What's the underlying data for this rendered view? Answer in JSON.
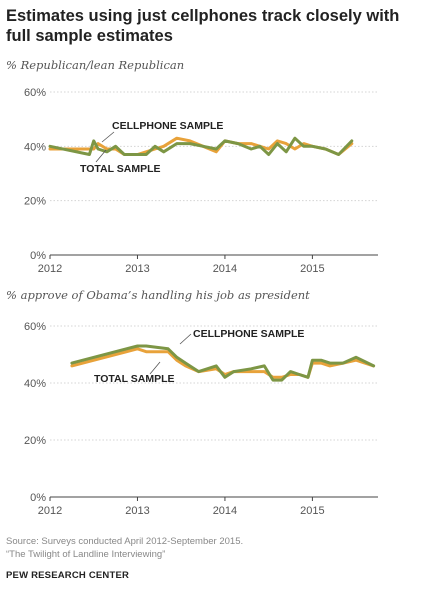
{
  "title": "Estimates using just cellphones track closely with full sample estimates",
  "source": "Source: Surveys conducted April 2012-September 2015.",
  "report": "“The Twilight of Landline Interviewing”",
  "brand": "PEW RESEARCH CENTER",
  "colors": {
    "cellphone": "#E8A23A",
    "total": "#7D9645",
    "grid": "#d4d4d4",
    "axis": "#444444"
  },
  "chart_data": [
    {
      "type": "line",
      "title": "% Republican/lean Republican",
      "x_ticks": [
        "2012",
        "2013",
        "2014",
        "2015"
      ],
      "xlim": [
        2012.0,
        2015.75
      ],
      "y_ticks": [
        "0%",
        "20%",
        "40%",
        "60%"
      ],
      "ylim": [
        0,
        60
      ],
      "annotations": [
        "CELLPHONE SAMPLE",
        "TOTAL SAMPLE"
      ],
      "series": [
        {
          "name": "CELLPHONE SAMPLE",
          "x": [
            2012.0,
            2012.45,
            2012.5,
            2012.55,
            2012.65,
            2012.75,
            2012.85,
            2013.0,
            2013.1,
            2013.2,
            2013.3,
            2013.45,
            2013.6,
            2013.75,
            2013.9,
            2014.0,
            2014.15,
            2014.3,
            2014.4,
            2014.5,
            2014.6,
            2014.7,
            2014.8,
            2014.9,
            2015.0,
            2015.15,
            2015.3,
            2015.45
          ],
          "y": [
            39,
            39,
            39,
            41,
            39,
            39,
            37,
            37,
            38,
            39,
            40,
            43,
            42,
            40,
            38,
            42,
            41,
            41,
            40,
            39,
            42,
            41,
            39,
            41,
            40,
            39,
            37,
            41
          ]
        },
        {
          "name": "TOTAL SAMPLE",
          "x": [
            2012.0,
            2012.45,
            2012.5,
            2012.55,
            2012.65,
            2012.75,
            2012.85,
            2013.0,
            2013.1,
            2013.2,
            2013.3,
            2013.45,
            2013.6,
            2013.75,
            2013.9,
            2014.0,
            2014.15,
            2014.3,
            2014.4,
            2014.5,
            2014.6,
            2014.7,
            2014.8,
            2014.9,
            2015.0,
            2015.15,
            2015.3,
            2015.45
          ],
          "y": [
            40,
            37,
            42,
            39,
            38,
            40,
            37,
            37,
            37,
            40,
            38,
            41,
            41,
            40,
            39,
            42,
            41,
            39,
            40,
            37,
            41,
            38,
            43,
            40,
            40,
            39,
            37,
            42
          ]
        }
      ]
    },
    {
      "type": "line",
      "title": "% approve of Obama’s handling his job as president",
      "x_ticks": [
        "2012",
        "2013",
        "2014",
        "2015"
      ],
      "xlim": [
        2012.0,
        2015.75
      ],
      "y_ticks": [
        "0%",
        "20%",
        "40%",
        "60%"
      ],
      "ylim": [
        0,
        60
      ],
      "annotations": [
        "CELLPHONE SAMPLE",
        "TOTAL SAMPLE"
      ],
      "series": [
        {
          "name": "CELLPHONE SAMPLE",
          "x": [
            2012.25,
            2013.0,
            2013.1,
            2013.35,
            2013.45,
            2013.55,
            2013.7,
            2013.9,
            2014.0,
            2014.1,
            2014.3,
            2014.45,
            2014.55,
            2014.65,
            2014.75,
            2014.85,
            2014.95,
            2015.0,
            2015.1,
            2015.2,
            2015.35,
            2015.5,
            2015.7
          ],
          "y": [
            46,
            52,
            51,
            51,
            48,
            46,
            44,
            45,
            43,
            44,
            44,
            44,
            42,
            42,
            43,
            43,
            42,
            47,
            47,
            46,
            47,
            48,
            46
          ]
        },
        {
          "name": "TOTAL SAMPLE",
          "x": [
            2012.25,
            2013.0,
            2013.1,
            2013.35,
            2013.45,
            2013.55,
            2013.7,
            2013.9,
            2014.0,
            2014.1,
            2014.3,
            2014.45,
            2014.55,
            2014.65,
            2014.75,
            2014.85,
            2014.95,
            2015.0,
            2015.1,
            2015.2,
            2015.35,
            2015.5,
            2015.7
          ],
          "y": [
            47,
            53,
            53,
            52,
            49,
            47,
            44,
            46,
            42,
            44,
            45,
            46,
            41,
            41,
            44,
            43,
            42,
            48,
            48,
            47,
            47,
            49,
            46
          ]
        }
      ]
    }
  ]
}
